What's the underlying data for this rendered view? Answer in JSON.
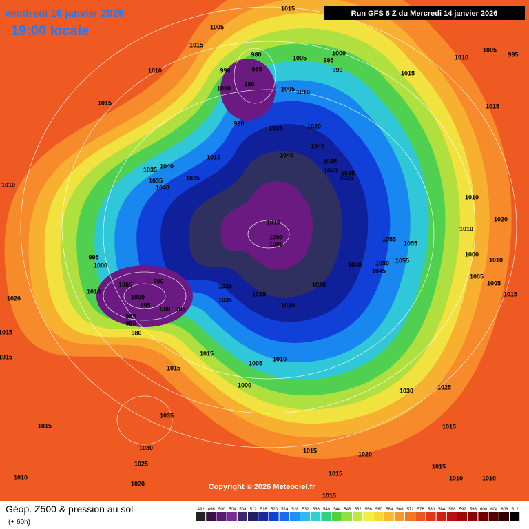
{
  "header": {
    "valid_date": "Vendredi 16 janvier 2026",
    "local_time": "19:00 locale",
    "run": "Run GFS 6 Z du Mercredi 14 janvier 2026"
  },
  "footer": {
    "title": "Géop. Z500 & pression au sol",
    "lead": "(+ 60h)",
    "copyright": "Copyright © 2026 Meteociel.fr"
  },
  "colorbar": {
    "values": [
      492,
      496,
      500,
      504,
      508,
      512,
      516,
      520,
      524,
      528,
      532,
      536,
      540,
      544,
      548,
      552,
      556,
      560,
      564,
      568,
      572,
      576,
      580,
      584,
      588,
      592,
      596,
      600,
      604,
      608,
      612
    ]
  },
  "isobar_labels": [
    "1015",
    "1005",
    "1015",
    "980",
    "985",
    "990",
    "980",
    "1000",
    "1005",
    "1000",
    "995",
    "990",
    "1005",
    "1010",
    "990",
    "1015",
    "1020",
    "1040",
    "1040",
    "1045",
    "1040",
    "1035",
    "1035",
    "1010",
    "1015",
    "1010",
    "1005",
    "995",
    "1015",
    "1015",
    "1010",
    "1035",
    "1040",
    "1035",
    "1040",
    "1025",
    "1010",
    "1010",
    "1010",
    "1020",
    "1010",
    "1000",
    "1005",
    "1055",
    "1055",
    "1055",
    "1050",
    "1045",
    "1040",
    "995",
    "1000",
    "1005",
    "990",
    "1010",
    "1000",
    "995",
    "980",
    "985",
    "985",
    "980",
    "980",
    "1035",
    "1035",
    "1015",
    "1010",
    "1020",
    "1000",
    "1010",
    "1005",
    "1005",
    "1015",
    "1020",
    "1015",
    "1015",
    "1015",
    "1005",
    "1010",
    "1000",
    "1015",
    "1030",
    "1025",
    "1035",
    "1015",
    "1030",
    "1025",
    "1020",
    "1010",
    "1015",
    "1020",
    "1015",
    "1015",
    "1015",
    "1010",
    "1010",
    "1015"
  ]
}
